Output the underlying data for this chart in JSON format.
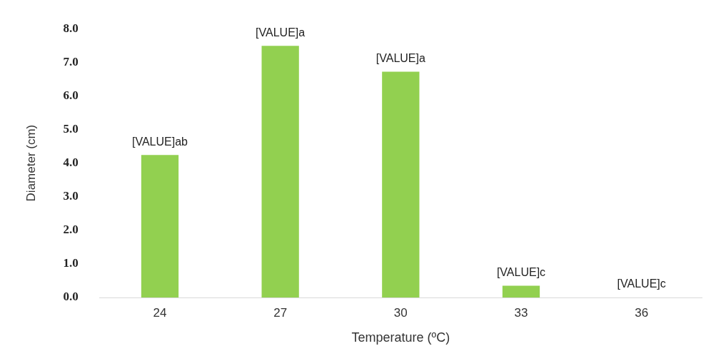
{
  "chart_data": {
    "type": "bar",
    "xlabel": "Temperature (ºC)",
    "ylabel": "Diameter (cm)",
    "categories": [
      "24",
      "27",
      "30",
      "33",
      "36"
    ],
    "values": [
      4.24,
      7.49,
      6.72,
      0.35,
      0
    ],
    "value_labels": [
      "[VALUE]ab",
      "[VALUE]a",
      "[VALUE]a",
      "[VALUE]c",
      "[VALUE]c"
    ],
    "color": "#92d050",
    "ylim": [
      0,
      8
    ],
    "yticks": [
      {
        "value": 0,
        "label": "0.0"
      },
      {
        "value": 1,
        "label": "1.0"
      },
      {
        "value": 2,
        "label": "2.0"
      },
      {
        "value": 3,
        "label": "3.0"
      },
      {
        "value": 4,
        "label": "4.0"
      },
      {
        "value": 5,
        "label": "5.0"
      },
      {
        "value": 6,
        "label": "6.0"
      },
      {
        "value": 7,
        "label": "7.0"
      },
      {
        "value": 8,
        "label": "8.0"
      }
    ],
    "grid": false,
    "legend": false
  }
}
